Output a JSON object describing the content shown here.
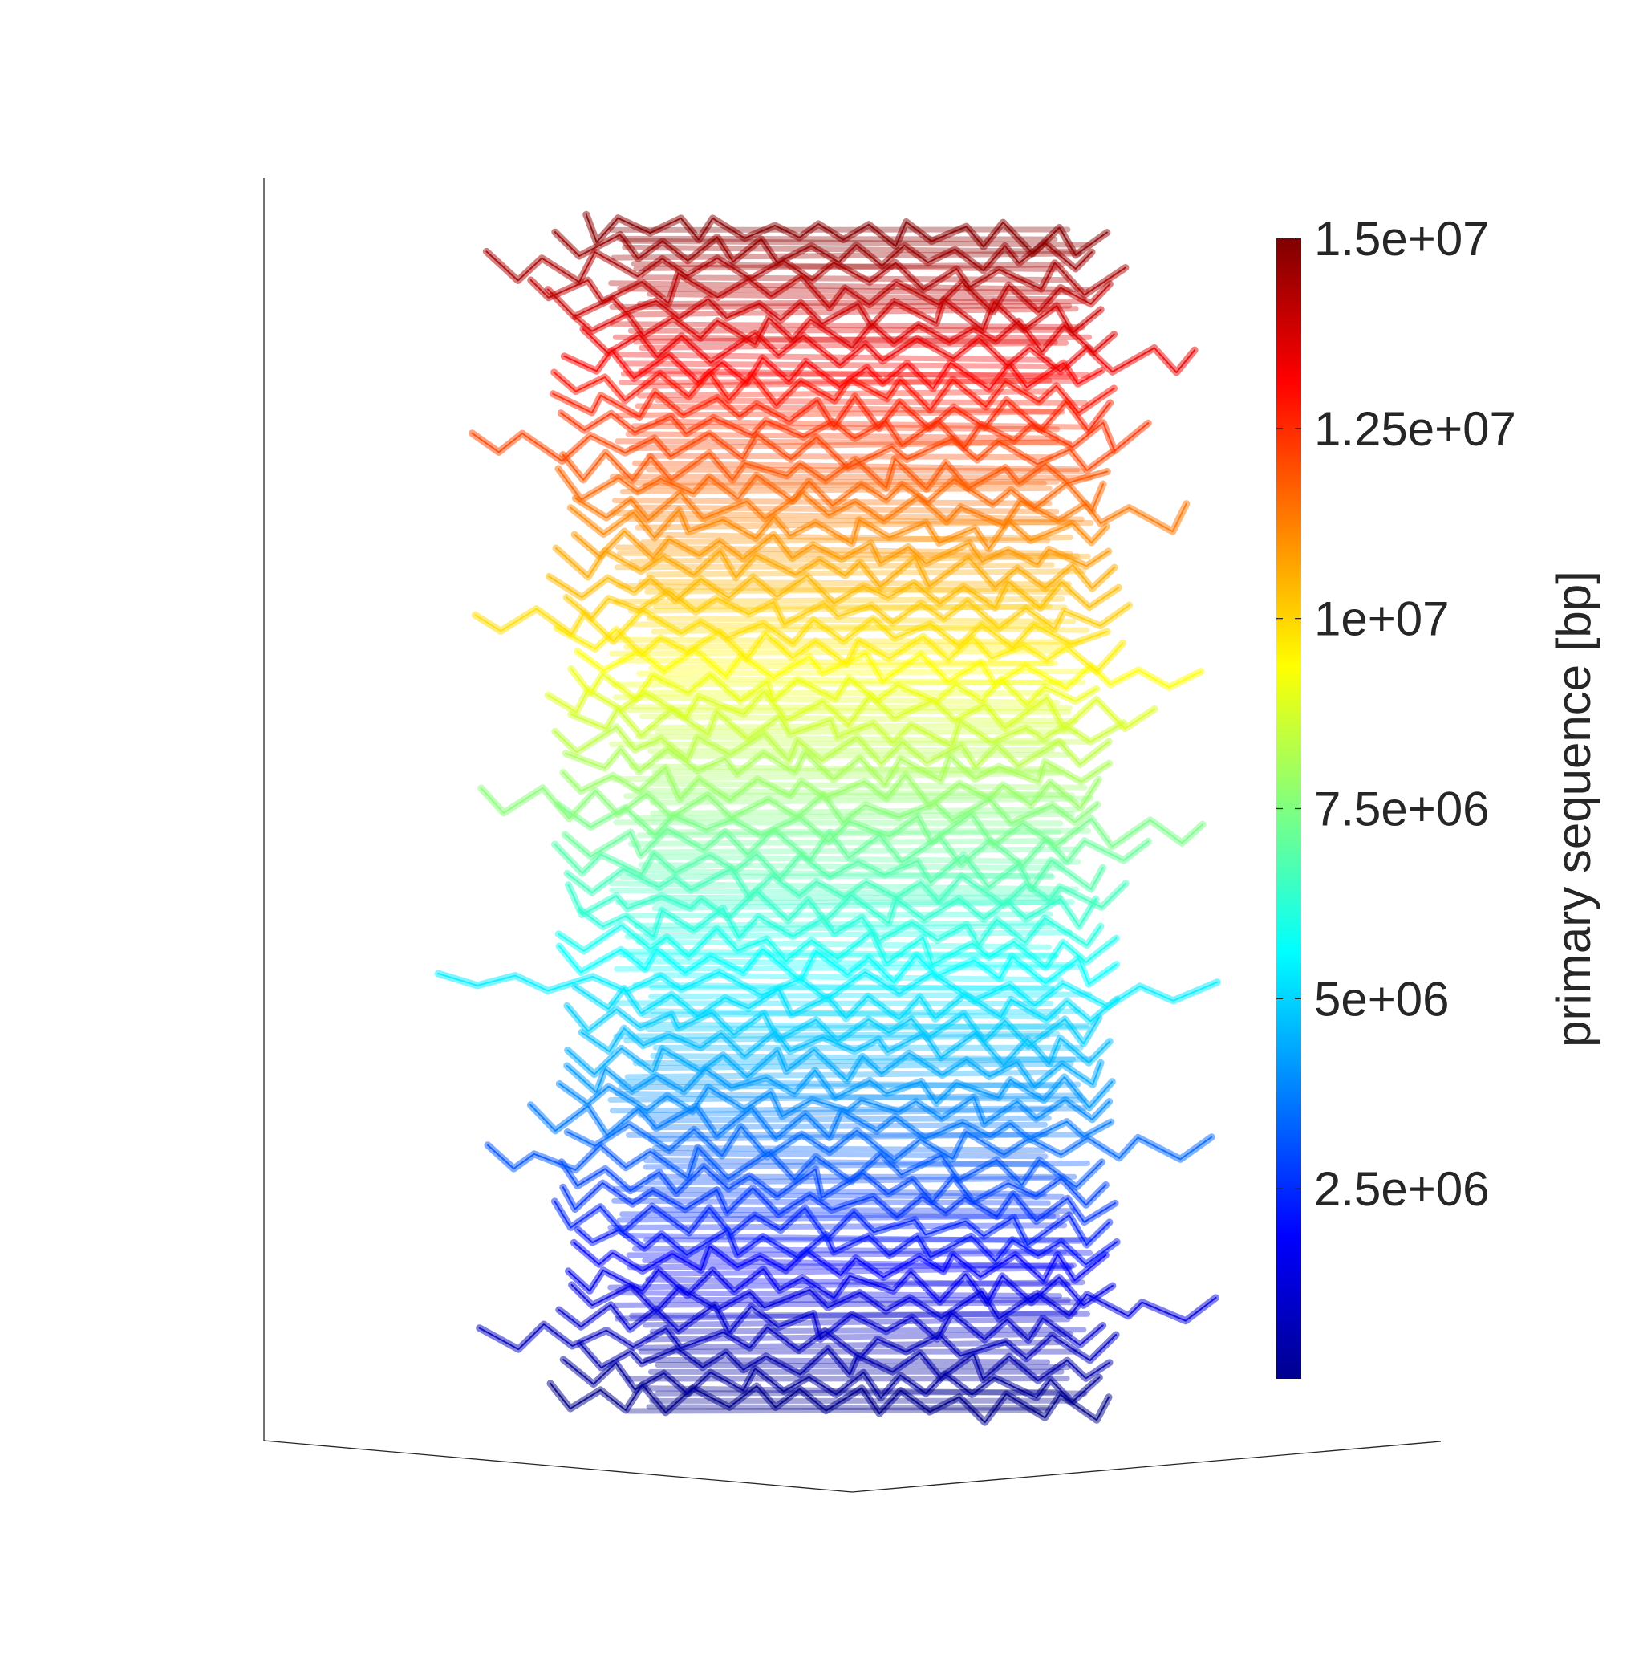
{
  "chart_data": {
    "type": "line",
    "subtype": "3d-polymer-trajectory",
    "title": "",
    "colormap": "jet",
    "colorbar": {
      "label": "primary sequence [bp]",
      "min": 0,
      "max": 15000000,
      "ticks": [
        2500000,
        5000000,
        7500000,
        10000000,
        12500000,
        15000000
      ],
      "tick_labels": [
        "2.5e+06",
        "5e+06",
        "7.5e+06",
        "1e+07",
        "1.25e+07",
        "1.5e+07"
      ]
    },
    "sequence_range": [
      0,
      15000000
    ],
    "axes_visible": false,
    "grid": false,
    "legend": "colorbar-right"
  }
}
